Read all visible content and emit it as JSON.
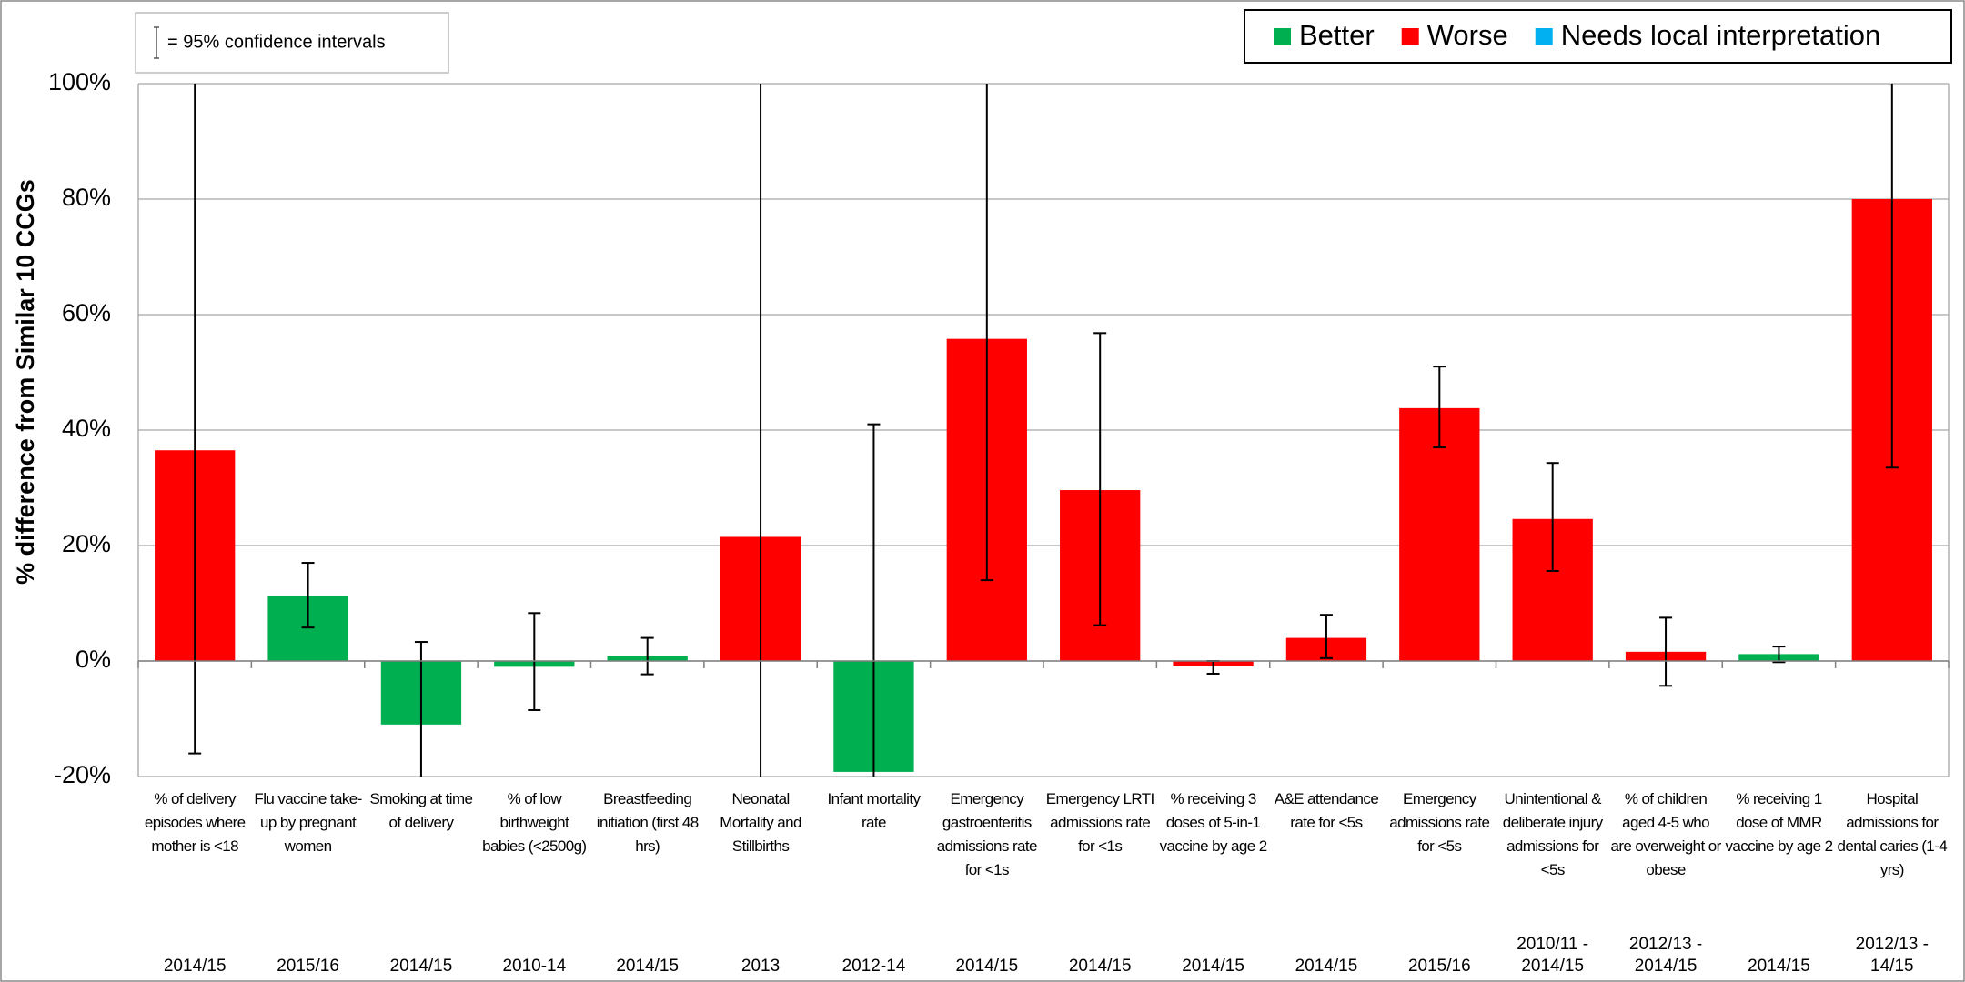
{
  "chart_data": {
    "type": "bar",
    "y_label": "% difference from Similar 10 CCGs",
    "ci_note": "= 95% confidence intervals",
    "legend": [
      {
        "name": "Better",
        "color": "#00b050"
      },
      {
        "name": "Worse",
        "color": "#ff0000"
      },
      {
        "name": "Needs local interpretation",
        "color": "#00b0f0"
      }
    ],
    "legend_position": "upper right",
    "grid": true,
    "categories": [
      "% of delivery episodes where mother is <18",
      "Flu vaccine take-up by pregnant women",
      "Smoking at time of delivery",
      "% of low birthweight babies (<2500g)",
      "Breastfeeding initiation (first 48 hrs)",
      "Neonatal Mortality and Stillbirths",
      "Infant mortality rate",
      "Emergency gastroenteritis admissions rate for <1s",
      "Emergency LRTI admissions rate for <1s",
      "% receiving 3 doses of 5-in-1 vaccine by age 2",
      "A&E attendance rate for <5s",
      "Emergency admissions rate for <5s",
      "Unintentional & deliberate injury admissions for <5s",
      "% of children aged 4-5 who are overweight or obese",
      "% receiving 1 dose of MMR vaccine by age 2",
      "Hospital admissions for dental caries (1-4 yrs)"
    ],
    "periods": [
      "2014/15",
      "2015/16",
      "2014/15",
      "2010-14",
      "2014/15",
      "2013",
      "2012-14",
      "2014/15",
      "2014/15",
      "2014/15",
      "2014/15",
      "2015/16",
      "2010/11 - 2014/15",
      "2012/13 - 2014/15",
      "2014/15",
      "2012/13 - 14/15"
    ],
    "values": [
      36.5,
      11.2,
      -11,
      -1,
      0.9,
      21.5,
      -19.2,
      55.8,
      29.6,
      -0.9,
      4,
      43.8,
      24.6,
      1.6,
      1.2,
      80
    ],
    "ci_low": [
      -16,
      5.8,
      -20,
      -8.5,
      -2.3,
      -20,
      -20,
      14,
      6.2,
      -2.2,
      0.5,
      37,
      15.6,
      -4.3,
      -0.2,
      33.5
    ],
    "ci_high": [
      100,
      17,
      3.3,
      8.3,
      4,
      100,
      41,
      100,
      56.8,
      0,
      8,
      51,
      34.3,
      7.5,
      2.5,
      100
    ],
    "colors": [
      "#ff0000",
      "#00b050",
      "#00b050",
      "#00b050",
      "#00b050",
      "#ff0000",
      "#00b050",
      "#ff0000",
      "#ff0000",
      "#ff0000",
      "#ff0000",
      "#ff0000",
      "#ff0000",
      "#ff0000",
      "#00b050",
      "#ff0000"
    ],
    "ylim": [
      -20,
      100
    ],
    "yticks": [
      {
        "value": -20,
        "label": "-20%"
      },
      {
        "value": 0,
        "label": "0%"
      },
      {
        "value": 20,
        "label": "20%"
      },
      {
        "value": 40,
        "label": "40%"
      },
      {
        "value": 60,
        "label": "60%"
      },
      {
        "value": 80,
        "label": "80%"
      },
      {
        "value": 100,
        "label": "100%"
      }
    ]
  }
}
